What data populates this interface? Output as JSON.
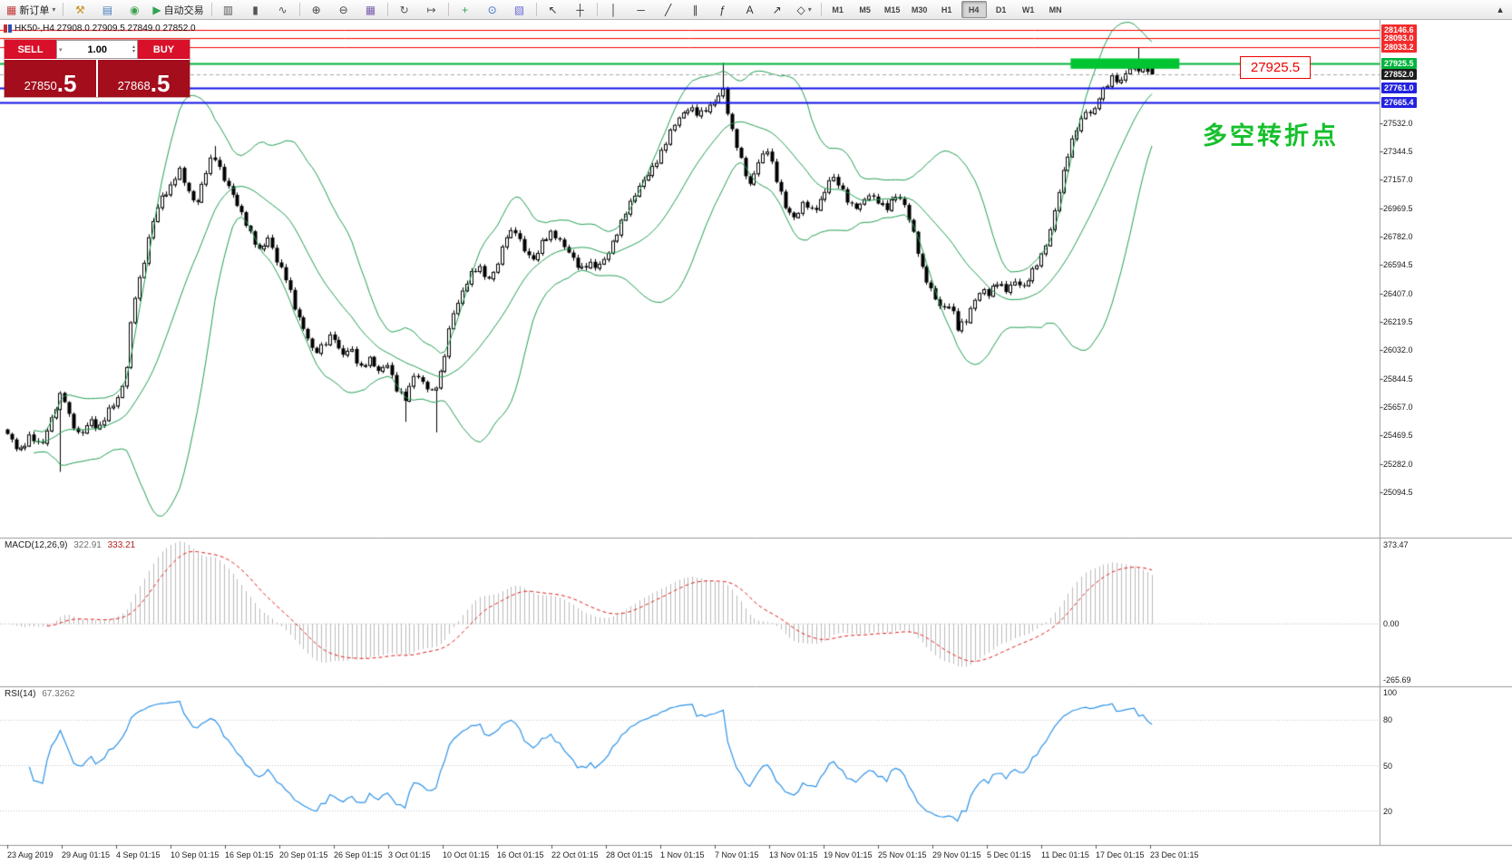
{
  "toolbar": {
    "groups": [
      [
        {
          "n": "new-order-button",
          "g": "▦",
          "c": "#c23b3b",
          "label": "新订单",
          "caret": true
        }
      ],
      [
        {
          "n": "chart-tools-button",
          "g": "⚒",
          "c": "#c8901e"
        },
        {
          "n": "profiles-button",
          "g": "▤",
          "c": "#4a7fc0"
        },
        {
          "n": "market-info-button",
          "g": "◉",
          "c": "#3fa14c"
        },
        {
          "n": "autotrading-button",
          "g": "▶",
          "c": "#2ea44f",
          "label": "自动交易"
        }
      ],
      [
        {
          "n": "bar-chart-button",
          "g": "▥",
          "c": "#555555"
        },
        {
          "n": "candlestick-chart-button",
          "g": "▮",
          "c": "#555555"
        },
        {
          "n": "line-chart-button",
          "g": "∿",
          "c": "#555555"
        }
      ],
      [
        {
          "n": "zoom-in-button",
          "g": "⊕",
          "c": "#444444"
        },
        {
          "n": "zoom-out-button",
          "g": "⊖",
          "c": "#444444"
        },
        {
          "n": "tile-windows-button",
          "g": "▦",
          "c": "#7a5fb0"
        }
      ],
      [
        {
          "n": "auto-scroll-button",
          "g": "↻",
          "c": "#555555"
        },
        {
          "n": "chart-shift-button",
          "g": "↦",
          "c": "#555555"
        }
      ],
      [
        {
          "n": "indicators-button",
          "g": "+",
          "c": "#2ea44f"
        },
        {
          "n": "periods-button",
          "g": "⊙",
          "c": "#3a6fd0"
        },
        {
          "n": "templates-button",
          "g": "▧",
          "c": "#6a6adb"
        }
      ],
      [
        {
          "n": "cursor-button",
          "g": "↖",
          "c": "#333333"
        },
        {
          "n": "crosshair-button",
          "g": "┼",
          "c": "#333333"
        }
      ],
      [
        {
          "n": "vertical-line-button",
          "g": "│",
          "c": "#333333"
        },
        {
          "n": "horizontal-line-button",
          "g": "─",
          "c": "#333333"
        },
        {
          "n": "trendline-button",
          "g": "╱",
          "c": "#333333"
        },
        {
          "n": "channel-button",
          "g": "∥",
          "c": "#333333"
        },
        {
          "n": "fibonacci-button",
          "g": "ƒ",
          "c": "#333333"
        },
        {
          "n": "text-button",
          "g": "A",
          "c": "#333333"
        },
        {
          "n": "arrow-tools-button",
          "g": "↗",
          "c": "#333333"
        },
        {
          "n": "shapes-button",
          "g": "◇",
          "c": "#333333",
          "caret": true
        }
      ]
    ],
    "timeframes": [
      "M1",
      "M5",
      "M15",
      "M30",
      "H1",
      "H4",
      "D1",
      "W1",
      "MN"
    ],
    "active_timeframe": "H4",
    "overflow_glyph": "▴"
  },
  "icons": {
    "caret_down": "▾",
    "caret_up": "▴"
  },
  "chart": {
    "title": "HK50-,H4  27908.0 27909.5 27849.0 27852.0",
    "annotation": "多空转折点",
    "annotation_color": "#16c02c",
    "callout": "27925.5"
  },
  "trade_panel": {
    "sell_label": "SELL",
    "buy_label": "BUY",
    "volume": "1.00",
    "sell_price": "27850",
    "sell_price_big": ".5",
    "buy_price": "27868",
    "buy_price_big": ".5"
  },
  "price_axis": {
    "levels": [
      {
        "label": "28146.6",
        "price": 28146.6,
        "line": "#f40000",
        "bg": "#f42b2b",
        "width": 1
      },
      {
        "label": "28093.0",
        "price": 28093.0,
        "line": "#f40000",
        "bg": "#f42b2b",
        "width": 1
      },
      {
        "label": "28033.2",
        "price": 28033.2,
        "line": "#f40000",
        "bg": "#f42b2b",
        "width": 1
      },
      {
        "label": "27925.5",
        "price": 27925.5,
        "line": "#00b43c",
        "bg": "#00b43c",
        "width": 2
      },
      {
        "label": "27852.0",
        "price": 27852.0,
        "line": "#a9a9a9",
        "bg": "#1c1c1c",
        "width": 1,
        "dash": true
      },
      {
        "label": "27761.0",
        "price": 27761.0,
        "line": "#1414e6",
        "bg": "#2222e0",
        "width": 2
      },
      {
        "label": "27665.4",
        "price": 27665.4,
        "line": "#1414e6",
        "bg": "#2222e0",
        "width": 2
      }
    ],
    "ticks": [
      "27532.0",
      "27344.5",
      "27157.0",
      "26969.5",
      "26782.0",
      "26594.5",
      "26407.0",
      "26219.5",
      "26032.0",
      "25844.5",
      "25657.0",
      "25469.5",
      "25282.0",
      "25094.5"
    ]
  },
  "macd": {
    "label": "MACD(12,26,9)",
    "main_value": "322.91",
    "signal_value": "333.21",
    "axis": [
      "373.47",
      "0.00",
      "-265.69"
    ]
  },
  "rsi": {
    "label": "RSI(14)",
    "value": "67.3262",
    "axis": [
      "100",
      "80",
      "50",
      "20"
    ]
  },
  "date_axis": [
    "23 Aug 2019",
    "29 Aug 01:15",
    "4 Sep 01:15",
    "10 Sep 01:15",
    "16 Sep 01:15",
    "20 Sep 01:15",
    "26 Sep 01:15",
    "3 Oct 01:15",
    "10 Oct 01:15",
    "16 Oct 01:15",
    "22 Oct 01:15",
    "28 Oct 01:15",
    "1 Nov 01:15",
    "7 Nov 01:15",
    "13 Nov 01:15",
    "19 Nov 01:15",
    "25 Nov 01:15",
    "29 Nov 01:15",
    "5 Dec 01:15",
    "11 Dec 01:15",
    "17 Dec 01:15",
    "23 Dec 01:15"
  ],
  "chart_data": {
    "type": "candlestick",
    "symbol": "HK50-",
    "timeframe": "H4",
    "last_ohlc": {
      "open": 27908.0,
      "high": 27909.5,
      "low": 27849.0,
      "close": 27852.0
    },
    "candle_count": 260,
    "price_top": 28212,
    "price_bottom": 24796,
    "close_waypoints": [
      [
        0.0,
        25480
      ],
      [
        0.01,
        25350
      ],
      [
        0.02,
        25480
      ],
      [
        0.03,
        25400
      ],
      [
        0.04,
        25600
      ],
      [
        0.048,
        25780
      ],
      [
        0.056,
        25550
      ],
      [
        0.064,
        25450
      ],
      [
        0.072,
        25580
      ],
      [
        0.08,
        25520
      ],
      [
        0.088,
        25630
      ],
      [
        0.095,
        25680
      ],
      [
        0.103,
        25850
      ],
      [
        0.11,
        26350
      ],
      [
        0.118,
        26550
      ],
      [
        0.126,
        26850
      ],
      [
        0.134,
        27050
      ],
      [
        0.142,
        27100
      ],
      [
        0.15,
        27220
      ],
      [
        0.158,
        27080
      ],
      [
        0.165,
        27000
      ],
      [
        0.172,
        27180
      ],
      [
        0.18,
        27320
      ],
      [
        0.188,
        27180
      ],
      [
        0.195,
        27100
      ],
      [
        0.203,
        26950
      ],
      [
        0.212,
        26800
      ],
      [
        0.22,
        26700
      ],
      [
        0.228,
        26780
      ],
      [
        0.236,
        26600
      ],
      [
        0.244,
        26500
      ],
      [
        0.252,
        26300
      ],
      [
        0.26,
        26150
      ],
      [
        0.268,
        26000
      ],
      [
        0.276,
        26080
      ],
      [
        0.284,
        26150
      ],
      [
        0.292,
        25980
      ],
      [
        0.3,
        26050
      ],
      [
        0.308,
        25920
      ],
      [
        0.316,
        25980
      ],
      [
        0.324,
        25880
      ],
      [
        0.332,
        25950
      ],
      [
        0.34,
        25780
      ],
      [
        0.348,
        25700
      ],
      [
        0.356,
        25880
      ],
      [
        0.364,
        25820
      ],
      [
        0.372,
        25750
      ],
      [
        0.38,
        25900
      ],
      [
        0.388,
        26250
      ],
      [
        0.396,
        26400
      ],
      [
        0.404,
        26520
      ],
      [
        0.412,
        26580
      ],
      [
        0.42,
        26500
      ],
      [
        0.428,
        26600
      ],
      [
        0.436,
        26780
      ],
      [
        0.444,
        26820
      ],
      [
        0.452,
        26700
      ],
      [
        0.46,
        26620
      ],
      [
        0.468,
        26750
      ],
      [
        0.476,
        26820
      ],
      [
        0.484,
        26750
      ],
      [
        0.492,
        26650
      ],
      [
        0.5,
        26560
      ],
      [
        0.508,
        26620
      ],
      [
        0.516,
        26580
      ],
      [
        0.524,
        26650
      ],
      [
        0.532,
        26800
      ],
      [
        0.54,
        26950
      ],
      [
        0.548,
        27050
      ],
      [
        0.556,
        27150
      ],
      [
        0.564,
        27250
      ],
      [
        0.572,
        27350
      ],
      [
        0.58,
        27480
      ],
      [
        0.588,
        27580
      ],
      [
        0.596,
        27650
      ],
      [
        0.604,
        27580
      ],
      [
        0.612,
        27620
      ],
      [
        0.62,
        27700
      ],
      [
        0.625,
        27780
      ],
      [
        0.632,
        27500
      ],
      [
        0.64,
        27300
      ],
      [
        0.648,
        27120
      ],
      [
        0.656,
        27280
      ],
      [
        0.664,
        27350
      ],
      [
        0.672,
        27150
      ],
      [
        0.68,
        26980
      ],
      [
        0.688,
        26900
      ],
      [
        0.696,
        27000
      ],
      [
        0.704,
        26950
      ],
      [
        0.712,
        27050
      ],
      [
        0.72,
        27180
      ],
      [
        0.728,
        27100
      ],
      [
        0.736,
        27000
      ],
      [
        0.744,
        26980
      ],
      [
        0.752,
        27050
      ],
      [
        0.76,
        27020
      ],
      [
        0.768,
        26980
      ],
      [
        0.776,
        27050
      ],
      [
        0.784,
        26980
      ],
      [
        0.792,
        26800
      ],
      [
        0.8,
        26550
      ],
      [
        0.808,
        26400
      ],
      [
        0.816,
        26300
      ],
      [
        0.824,
        26350
      ],
      [
        0.83,
        26180
      ],
      [
        0.838,
        26220
      ],
      [
        0.846,
        26380
      ],
      [
        0.852,
        26450
      ],
      [
        0.858,
        26400
      ],
      [
        0.864,
        26480
      ],
      [
        0.872,
        26420
      ],
      [
        0.88,
        26500
      ],
      [
        0.888,
        26450
      ],
      [
        0.896,
        26550
      ],
      [
        0.903,
        26650
      ],
      [
        0.91,
        26800
      ],
      [
        0.918,
        27050
      ],
      [
        0.926,
        27300
      ],
      [
        0.934,
        27500
      ],
      [
        0.942,
        27620
      ],
      [
        0.948,
        27580
      ],
      [
        0.954,
        27700
      ],
      [
        0.96,
        27780
      ],
      [
        0.966,
        27850
      ],
      [
        0.972,
        27800
      ],
      [
        0.978,
        27870
      ],
      [
        0.984,
        27900
      ],
      [
        0.99,
        27880
      ],
      [
        0.995,
        27910
      ],
      [
        1.0,
        27852
      ]
    ],
    "spikes": [
      {
        "f": 0.048,
        "low": 25230
      },
      {
        "f": 0.18,
        "high": 27380
      },
      {
        "f": 0.348,
        "low": 25560
      },
      {
        "f": 0.374,
        "low": 25490
      },
      {
        "f": 0.625,
        "high": 27930
      },
      {
        "f": 0.988,
        "high": 28030
      }
    ],
    "bollinger": {
      "period": 20,
      "deviation": 2,
      "color": "#23a055"
    },
    "macd_params": [
      12,
      26,
      9
    ],
    "macd_current": [
      322.91,
      333.21
    ],
    "macd_axis_max": 373.47,
    "macd_axis_min": -265.69,
    "macd_hist_color": "#bcbcbc",
    "macd_signal_color": "#e02020",
    "rsi_period": 14,
    "rsi_current": 67.3262,
    "rsi_levels": [
      80,
      50,
      20
    ],
    "rsi_line_color": "#2e93e8",
    "highlight_rect": {
      "f0": 0.929,
      "f1": 1.024,
      "price_top": 27958,
      "price_bottom": 27890,
      "color": "#00c432"
    },
    "candle_up_color": "#ffffff",
    "candle_down_color": "#000000"
  }
}
